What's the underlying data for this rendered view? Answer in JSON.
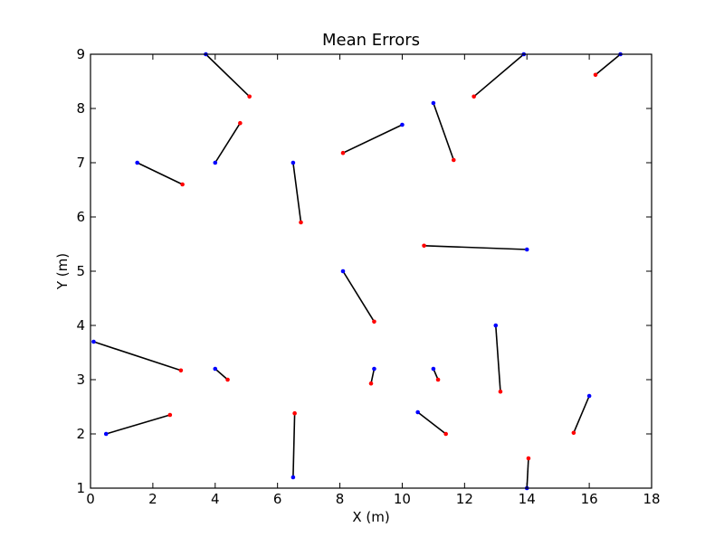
{
  "chart_data": {
    "type": "scatter",
    "title": "Mean Errors",
    "xlabel": "X (m)",
    "ylabel": "Y (m)",
    "xlim": [
      0,
      18
    ],
    "ylim": [
      1,
      9
    ],
    "xticks": [
      0,
      2,
      4,
      6,
      8,
      10,
      12,
      14,
      16,
      18
    ],
    "yticks": [
      1,
      2,
      3,
      4,
      5,
      6,
      7,
      8,
      9
    ],
    "grid": false,
    "legend": "none",
    "colors": {
      "true_point": "#0000ff",
      "estimate_point": "#ff0000",
      "error_line": "#000000"
    },
    "series": [
      {
        "role": "error_vectors",
        "pairs": [
          {
            "true": [
              3.7,
              9.0
            ],
            "estimate": [
              5.1,
              8.22
            ]
          },
          {
            "true": [
              13.9,
              9.0
            ],
            "estimate": [
              12.3,
              8.22
            ]
          },
          {
            "true": [
              17.0,
              9.0
            ],
            "estimate": [
              16.2,
              8.62
            ]
          },
          {
            "true": [
              11.0,
              8.1
            ],
            "estimate": [
              11.65,
              7.05
            ]
          },
          {
            "true": [
              10.0,
              7.7
            ],
            "estimate": [
              8.1,
              7.18
            ]
          },
          {
            "true": [
              4.0,
              7.0
            ],
            "estimate": [
              4.8,
              7.73
            ]
          },
          {
            "true": [
              1.5,
              7.0
            ],
            "estimate": [
              2.95,
              6.6
            ]
          },
          {
            "true": [
              6.5,
              7.0
            ],
            "estimate": [
              6.75,
              5.9
            ]
          },
          {
            "true": [
              14.0,
              5.4
            ],
            "estimate": [
              10.7,
              5.47
            ]
          },
          {
            "true": [
              8.1,
              5.0
            ],
            "estimate": [
              9.1,
              4.07
            ]
          },
          {
            "true": [
              13.0,
              4.0
            ],
            "estimate": [
              13.15,
              2.78
            ]
          },
          {
            "true": [
              0.1,
              3.7
            ],
            "estimate": [
              2.9,
              3.17
            ]
          },
          {
            "true": [
              4.0,
              3.2
            ],
            "estimate": [
              4.4,
              3.0
            ]
          },
          {
            "true": [
              9.1,
              3.2
            ],
            "estimate": [
              9.0,
              2.93
            ]
          },
          {
            "true": [
              11.0,
              3.2
            ],
            "estimate": [
              11.15,
              3.0
            ]
          },
          {
            "true": [
              16.0,
              2.7
            ],
            "estimate": [
              15.5,
              2.02
            ]
          },
          {
            "true": [
              0.5,
              2.0
            ],
            "estimate": [
              2.55,
              2.35
            ]
          },
          {
            "true": [
              10.5,
              2.4
            ],
            "estimate": [
              11.4,
              2.0
            ]
          },
          {
            "true": [
              6.5,
              1.2
            ],
            "estimate": [
              6.55,
              2.38
            ]
          },
          {
            "true": [
              14.0,
              1.0
            ],
            "estimate": [
              14.05,
              1.55
            ]
          }
        ]
      }
    ]
  }
}
